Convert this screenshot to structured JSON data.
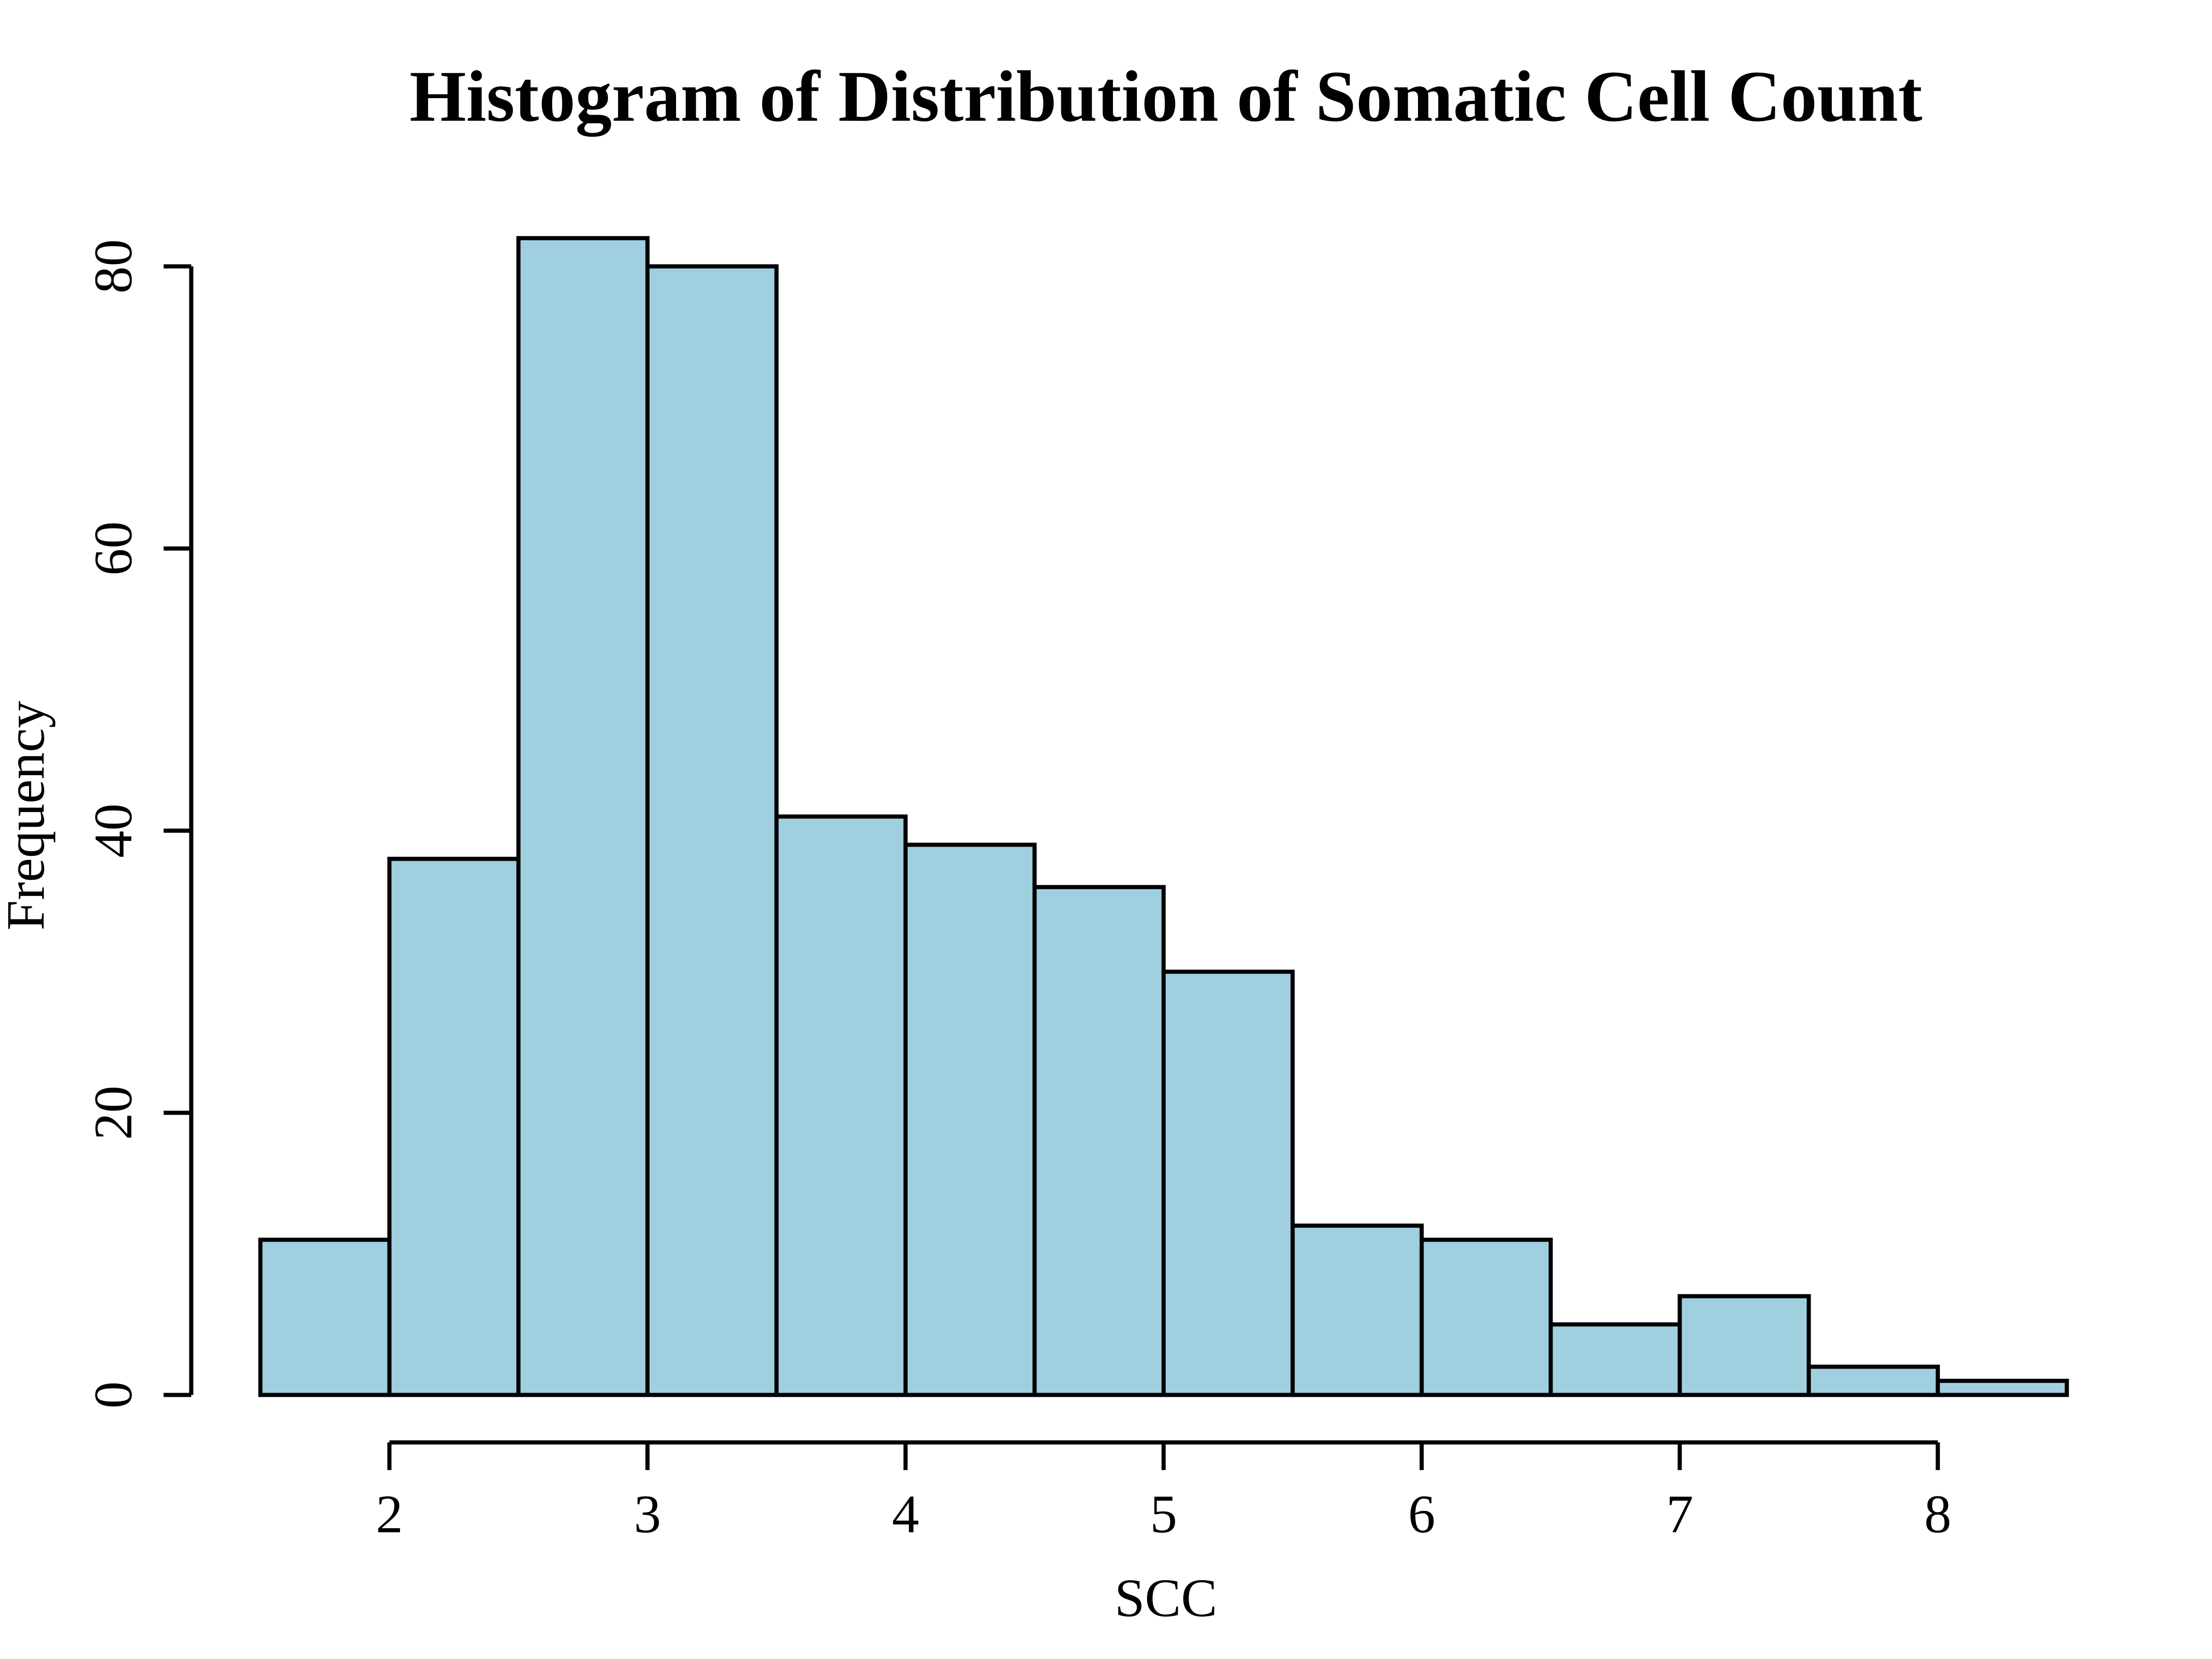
{
  "chart_data": {
    "type": "histogram",
    "title": "Histogram of Distribution of Somatic Cell Count",
    "xlabel": "SCC",
    "ylabel": "Frequency",
    "bin_edges": [
      1.5,
      2.0,
      2.5,
      3.0,
      3.5,
      4.0,
      4.5,
      5.0,
      5.5,
      6.0,
      6.5,
      7.0,
      7.5,
      8.0,
      8.5
    ],
    "values": [
      11,
      38,
      82,
      80,
      41,
      39,
      36,
      30,
      12,
      11,
      5,
      7,
      2,
      1
    ],
    "xticks": [
      "2",
      "3",
      "4",
      "5",
      "6",
      "7",
      "8"
    ],
    "yticks": [
      "0",
      "20",
      "40",
      "60",
      "80"
    ],
    "xlim": [
      1.5,
      8.5
    ],
    "ylim": [
      0,
      80
    ],
    "grid": false,
    "colors": {
      "bar_fill": "#a0cfe0",
      "bar_edge": "#000000"
    }
  }
}
